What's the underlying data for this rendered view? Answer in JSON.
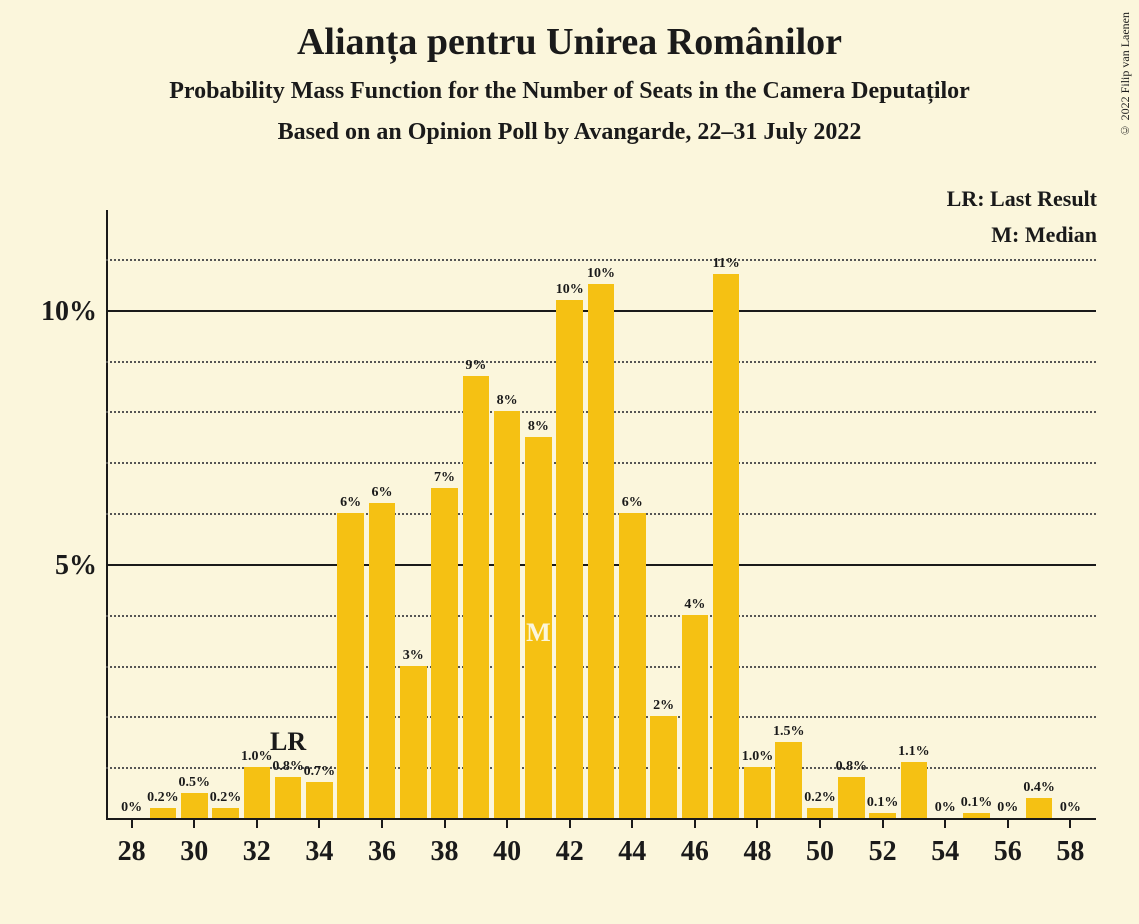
{
  "title": "Alianța pentru Unirea Românilor",
  "subtitle": "Probability Mass Function for the Number of Seats in the Camera Deputaților",
  "subtitle2": "Based on an Opinion Poll by Avangarde, 22–31 July 2022",
  "legend_lr": "LR: Last Result",
  "legend_m": "M: Median",
  "copyright": "© 2022 Filip van Laenen",
  "title_fontsize": 38,
  "subtitle_fontsize": 24,
  "legend_fontsize": 22,
  "y_label_fontsize": 28,
  "x_label_fontsize": 28,
  "bar_label_fontsize": 14,
  "marker_lr_fontsize": 26,
  "marker_m_fontsize": 26,
  "background_color": "#fbf6dc",
  "bar_color": "#f5c113",
  "text_color": "#1a1a1a",
  "marker_m_color": "#fbf6dc",
  "ylim": [
    0,
    12
  ],
  "y_major_ticks": [
    5,
    10
  ],
  "y_minor_ticks": [
    1,
    2,
    3,
    4,
    6,
    7,
    8,
    9,
    11
  ],
  "x_range": [
    28,
    58
  ],
  "x_tick_step": 2,
  "bar_width_ratio": 0.85,
  "bars": [
    {
      "x": 28,
      "value": 0,
      "label": "0%"
    },
    {
      "x": 29,
      "value": 0.2,
      "label": "0.2%"
    },
    {
      "x": 30,
      "value": 0.5,
      "label": "0.5%"
    },
    {
      "x": 31,
      "value": 0.2,
      "label": "0.2%"
    },
    {
      "x": 32,
      "value": 1.0,
      "label": "1.0%"
    },
    {
      "x": 33,
      "value": 0.8,
      "label": "0.8%"
    },
    {
      "x": 34,
      "value": 0.7,
      "label": "0.7%"
    },
    {
      "x": 35,
      "value": 6,
      "label": "6%"
    },
    {
      "x": 36,
      "value": 6.2,
      "label": "6%"
    },
    {
      "x": 37,
      "value": 3,
      "label": "3%"
    },
    {
      "x": 38,
      "value": 6.5,
      "label": "7%"
    },
    {
      "x": 39,
      "value": 8.7,
      "label": "9%"
    },
    {
      "x": 40,
      "value": 8,
      "label": "8%"
    },
    {
      "x": 41,
      "value": 7.5,
      "label": "8%"
    },
    {
      "x": 42,
      "value": 10.2,
      "label": "10%"
    },
    {
      "x": 43,
      "value": 10.5,
      "label": "10%"
    },
    {
      "x": 44,
      "value": 6,
      "label": "6%"
    },
    {
      "x": 45,
      "value": 2,
      "label": "2%"
    },
    {
      "x": 46,
      "value": 4,
      "label": "4%"
    },
    {
      "x": 47,
      "value": 10.7,
      "label": "11%"
    },
    {
      "x": 48,
      "value": 1.0,
      "label": "1.0%"
    },
    {
      "x": 49,
      "value": 1.5,
      "label": "1.5%"
    },
    {
      "x": 50,
      "value": 0.2,
      "label": "0.2%"
    },
    {
      "x": 51,
      "value": 0.8,
      "label": "0.8%"
    },
    {
      "x": 52,
      "value": 0.1,
      "label": "0.1%"
    },
    {
      "x": 53,
      "value": 1.1,
      "label": "1.1%"
    },
    {
      "x": 54,
      "value": 0,
      "label": "0%"
    },
    {
      "x": 55,
      "value": 0.1,
      "label": "0.1%"
    },
    {
      "x": 56,
      "value": 0,
      "label": "0%"
    },
    {
      "x": 57,
      "value": 0.4,
      "label": "0.4%"
    },
    {
      "x": 58,
      "value": 0,
      "label": "0%"
    }
  ],
  "markers": {
    "LR": {
      "x": 33,
      "label": "LR",
      "position": "above"
    },
    "M": {
      "x": 41,
      "label": "M",
      "position": "inside"
    }
  }
}
